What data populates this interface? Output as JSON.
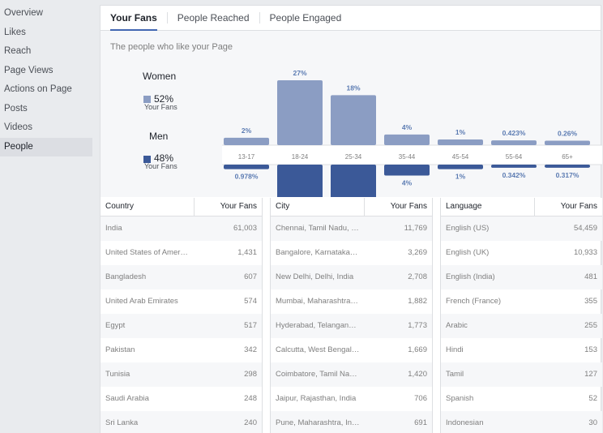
{
  "sidebar": {
    "items": [
      {
        "label": "Overview"
      },
      {
        "label": "Likes"
      },
      {
        "label": "Reach"
      },
      {
        "label": "Page Views"
      },
      {
        "label": "Actions on Page"
      },
      {
        "label": "Posts"
      },
      {
        "label": "Videos"
      },
      {
        "label": "People"
      }
    ],
    "active": "People"
  },
  "tabs": [
    {
      "label": "Your Fans"
    },
    {
      "label": "People Reached"
    },
    {
      "label": "People Engaged"
    }
  ],
  "chart_header": "The people who like your Page",
  "legend": {
    "women": {
      "label": "Women",
      "pct": "52%",
      "sub": "Your Fans"
    },
    "men": {
      "label": "Men",
      "pct": "48%",
      "sub": "Your Fans"
    }
  },
  "colors": {
    "women": "#8b9dc3",
    "men": "#3b5998",
    "accent": "#4267b2"
  },
  "chart_data": {
    "type": "bar",
    "categories": [
      "13-17",
      "18-24",
      "25-34",
      "35-44",
      "45-54",
      "55-64",
      "65+"
    ],
    "series": [
      {
        "name": "Women",
        "values": [
          2,
          27,
          18,
          4,
          1,
          0.423,
          0.26
        ],
        "labels": [
          "2%",
          "27%",
          "18%",
          "4%",
          "1%",
          "0.423%",
          "0.26%"
        ]
      },
      {
        "name": "Men",
        "values": [
          0.978,
          22,
          20,
          4,
          1,
          0.342,
          0.317
        ],
        "labels": [
          "0.978%",
          "22%",
          "20%",
          "4%",
          "1%",
          "0.342%",
          "0.317%"
        ]
      }
    ]
  },
  "tables": [
    {
      "headers": {
        "name": "Country",
        "value": "Your Fans"
      },
      "rows": [
        {
          "name": "India",
          "value": "61,003"
        },
        {
          "name": "United States of America",
          "value": "1,431"
        },
        {
          "name": "Bangladesh",
          "value": "607"
        },
        {
          "name": "United Arab Emirates",
          "value": "574"
        },
        {
          "name": "Egypt",
          "value": "517"
        },
        {
          "name": "Pakistan",
          "value": "342"
        },
        {
          "name": "Tunisia",
          "value": "298"
        },
        {
          "name": "Saudi Arabia",
          "value": "248"
        },
        {
          "name": "Sri Lanka",
          "value": "240"
        }
      ]
    },
    {
      "headers": {
        "name": "City",
        "value": "Your Fans"
      },
      "rows": [
        {
          "name": "Chennai, Tamil Nadu, India",
          "value": "11,769"
        },
        {
          "name": "Bangalore, Karnataka, India",
          "value": "3,269"
        },
        {
          "name": "New Delhi, Delhi, India",
          "value": "2,708"
        },
        {
          "name": "Mumbai, Maharashtra, India",
          "value": "1,882"
        },
        {
          "name": "Hyderabad, Telangana, India",
          "value": "1,773"
        },
        {
          "name": "Calcutta, West Bengal, India",
          "value": "1,669"
        },
        {
          "name": "Coimbatore, Tamil Nadu, India",
          "value": "1,420"
        },
        {
          "name": "Jaipur, Rajasthan, India",
          "value": "706"
        },
        {
          "name": "Pune, Maharashtra, India",
          "value": "691"
        }
      ]
    },
    {
      "headers": {
        "name": "Language",
        "value": "Your Fans"
      },
      "rows": [
        {
          "name": "English (US)",
          "value": "54,459"
        },
        {
          "name": "English (UK)",
          "value": "10,933"
        },
        {
          "name": "English (India)",
          "value": "481"
        },
        {
          "name": "French (France)",
          "value": "355"
        },
        {
          "name": "Arabic",
          "value": "255"
        },
        {
          "name": "Hindi",
          "value": "153"
        },
        {
          "name": "Tamil",
          "value": "127"
        },
        {
          "name": "Spanish",
          "value": "52"
        },
        {
          "name": "Indonesian",
          "value": "30"
        }
      ]
    }
  ]
}
